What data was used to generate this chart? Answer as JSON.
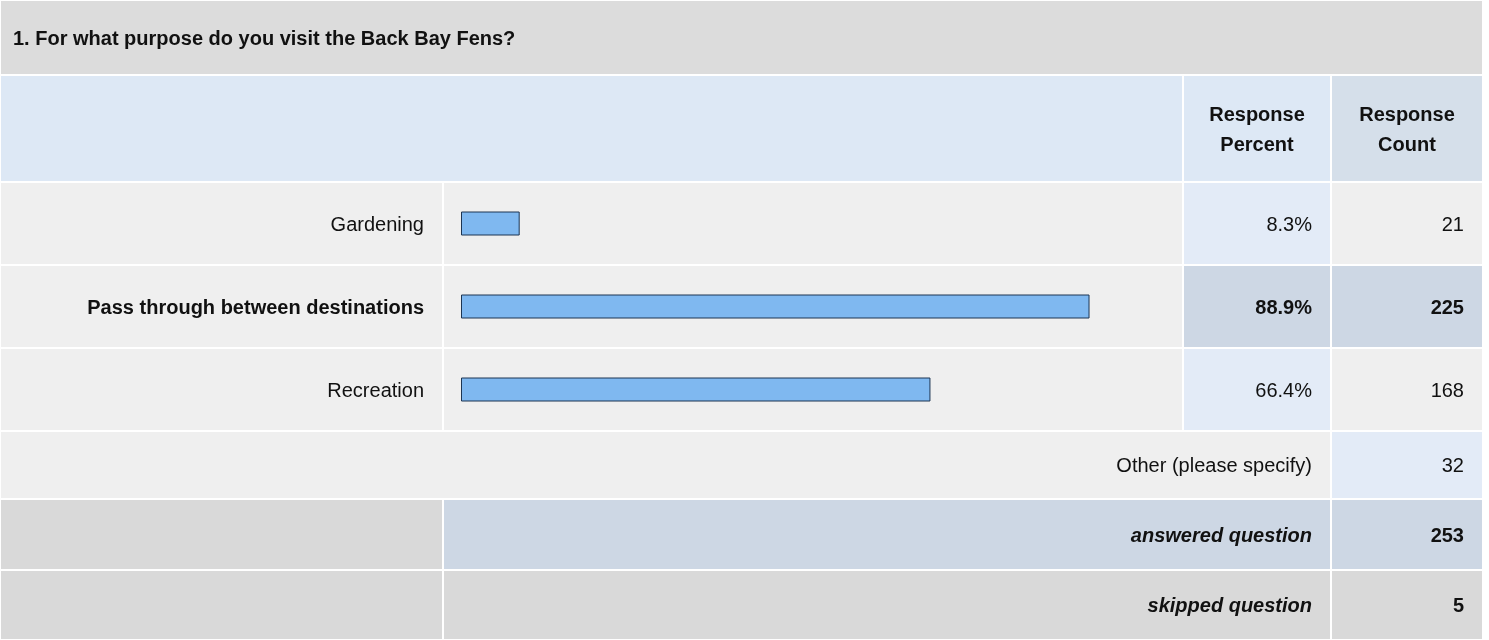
{
  "chart_data": {
    "type": "bar",
    "orientation": "horizontal",
    "title": "1. For what purpose do you visit the Back Bay Fens?",
    "categories": [
      "Gardening",
      "Pass through between destinations",
      "Recreation"
    ],
    "values": [
      8.3,
      88.9,
      66.4
    ],
    "value_labels": [
      "8.3%",
      "88.9%",
      "66.4%"
    ],
    "color": "#7fb8f0",
    "annotations": [
      "Response Percent",
      "Response Count",
      "21",
      "225",
      "168",
      "Other (please specify)",
      "32",
      "answered question",
      "253",
      "skipped question",
      "5"
    ]
  }
}
